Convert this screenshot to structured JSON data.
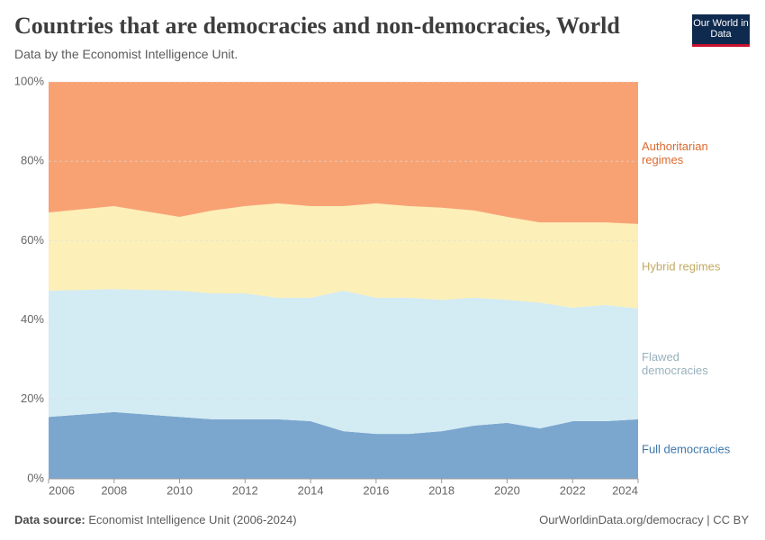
{
  "chart_data": {
    "type": "stacked-area",
    "title": "Countries that are democracies and non-democracies, World",
    "subtitle": "Data by the Economist Intelligence Unit.",
    "logo": "Our World in Data",
    "source_label": "Data source:",
    "source": "Economist Intelligence Unit (2006-2024)",
    "footer_link": "OurWorldinData.org/democracy | CC BY",
    "x": [
      2006,
      2008,
      2010,
      2011,
      2012,
      2013,
      2014,
      2015,
      2016,
      2017,
      2018,
      2019,
      2020,
      2021,
      2022,
      2023,
      2024
    ],
    "series": [
      {
        "name": "Full democracies",
        "color": "#7ba7cf",
        "label_color": "#3d76ad",
        "values": [
          15.6,
          16.8,
          15.6,
          15.0,
          15.0,
          15.0,
          14.5,
          12.0,
          11.3,
          11.3,
          12.0,
          13.4,
          14.1,
          12.7,
          14.5,
          14.5,
          15.0
        ]
      },
      {
        "name": "Flawed democracies",
        "color": "#d3ebf3",
        "label_color": "#98b1bd",
        "values": [
          31.8,
          31.0,
          31.8,
          31.7,
          31.7,
          30.6,
          31.1,
          35.4,
          34.3,
          34.3,
          33.1,
          32.2,
          31.0,
          31.7,
          28.6,
          29.3,
          27.9
        ]
      },
      {
        "name": "Hybrid regimes",
        "color": "#fcefb7",
        "label_color": "#c2aa61",
        "values": [
          19.7,
          20.9,
          18.6,
          20.9,
          22.0,
          23.8,
          23.1,
          21.3,
          23.8,
          23.1,
          23.2,
          22.0,
          20.9,
          20.2,
          21.5,
          20.8,
          21.3
        ]
      },
      {
        "name": "Authoritarian regimes",
        "color": "#f8a274",
        "label_color": "#dd6a2f",
        "values": [
          32.9,
          31.3,
          34.0,
          32.4,
          31.3,
          30.6,
          31.3,
          31.3,
          30.6,
          31.3,
          31.7,
          32.4,
          34.0,
          35.4,
          35.4,
          35.4,
          35.8
        ]
      }
    ],
    "xlim": [
      2006,
      2024
    ],
    "xticks": [
      2006,
      2008,
      2010,
      2012,
      2014,
      2016,
      2018,
      2020,
      2022,
      2024
    ],
    "ylim": [
      0,
      100
    ],
    "yticks": [
      {
        "value": 0,
        "label": "0%"
      },
      {
        "value": 20,
        "label": "20%"
      },
      {
        "value": 40,
        "label": "40%"
      },
      {
        "value": 60,
        "label": "60%"
      },
      {
        "value": 80,
        "label": "80%"
      },
      {
        "value": 100,
        "label": "100%"
      }
    ],
    "grid": true
  }
}
